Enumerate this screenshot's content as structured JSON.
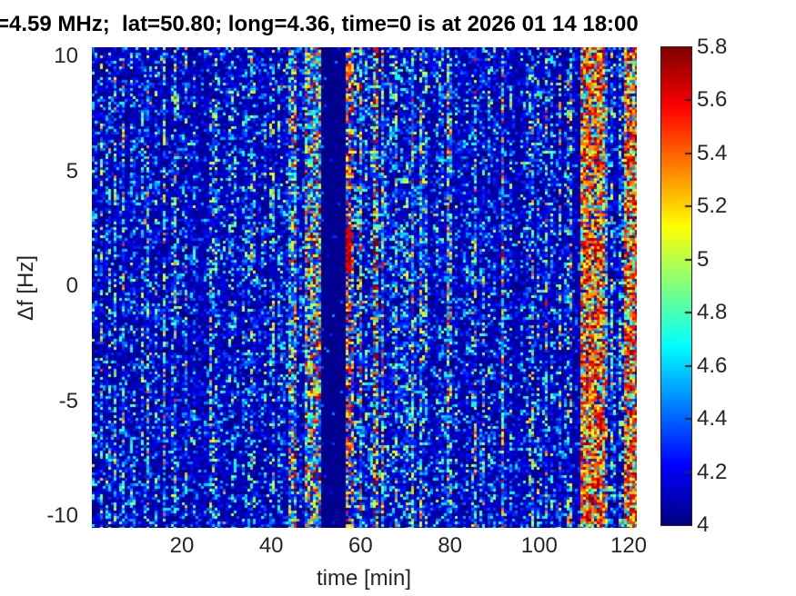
{
  "title": "=4.59 MHz;  lat=50.80; long=4.36, time=0 is at 2026 01 14 18:00",
  "chart_data": {
    "type": "heatmap",
    "title": "=4.59 MHz;  lat=50.80; long=4.36, time=0 is at 2026 01 14 18:00",
    "xlabel": "time [min]",
    "ylabel": "Δf [Hz]",
    "xlim": [
      0,
      122.3
    ],
    "ylim": [
      -10.5,
      10.5
    ],
    "x_ticks": [
      20,
      40,
      60,
      80,
      100,
      120
    ],
    "y_ticks": [
      10,
      5,
      0,
      -5,
      -10
    ],
    "grid": false,
    "colormap": "jet",
    "colorbar": {
      "min": 4,
      "max": 5.8,
      "tick_labels": [
        "5.8",
        "5.6",
        "5.4",
        "5.2",
        "5",
        "4.8",
        "4.6",
        "4.4",
        "4.2",
        "4"
      ],
      "position": "right"
    },
    "background_value_range": [
      4.0,
      4.25
    ],
    "bands": [
      {
        "kind": "speckle",
        "t0": 0,
        "t1": 41.5,
        "amp": 0.85,
        "density": 0.32
      },
      {
        "kind": "speckle",
        "t0": 41.5,
        "t1": 51.3,
        "amp": 1.3,
        "density": 0.55
      },
      {
        "kind": "quiet",
        "t0": 51.3,
        "t1": 56.8,
        "value": 4.0
      },
      {
        "kind": "hot-column",
        "t0": 56.8,
        "t1": 58.2,
        "blob_df": [
          0.6,
          2.6
        ],
        "blob_value": 5.7
      },
      {
        "kind": "speckle",
        "t0": 58.2,
        "t1": 66,
        "amp": 1.45,
        "density": 0.6
      },
      {
        "kind": "speckle",
        "t0": 66,
        "t1": 75,
        "amp": 1.2,
        "density": 0.5
      },
      {
        "kind": "speckle",
        "t0": 75,
        "t1": 95,
        "amp": 0.9,
        "density": 0.36
      },
      {
        "kind": "speckle",
        "t0": 95,
        "t1": 109,
        "amp": 0.8,
        "density": 0.3
      },
      {
        "kind": "hot",
        "t0": 109,
        "t1": 114.5,
        "value_range": [
          5.2,
          5.8
        ]
      },
      {
        "kind": "speckle",
        "t0": 114.5,
        "t1": 118.7,
        "amp": 1.0,
        "density": 0.42
      },
      {
        "kind": "hot",
        "t0": 118.7,
        "t1": 122.4,
        "value_range": [
          5.2,
          5.8
        ]
      }
    ],
    "colors": {
      "tick_label": "#262626",
      "title_text": "#000000",
      "jet_low": "#000080",
      "jet_high": "#800000"
    }
  }
}
